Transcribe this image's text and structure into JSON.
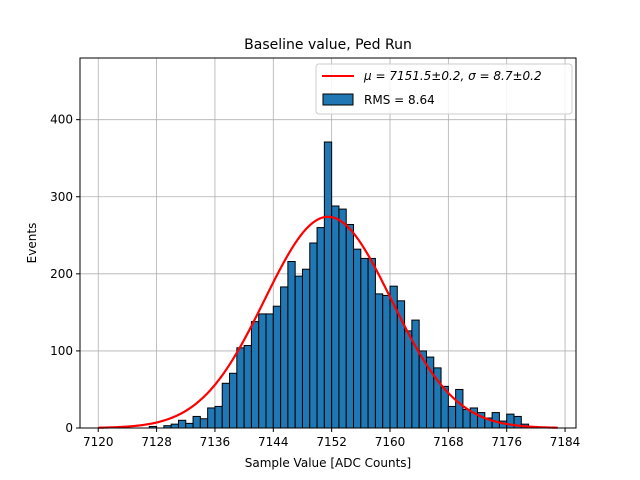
{
  "chart_data": {
    "type": "bar",
    "title": "Baseline value, Ped Run",
    "xlabel": "Sample Value [ADC Counts]",
    "ylabel": "Events",
    "xlim": [
      7117.5,
      7185.5
    ],
    "ylim": [
      0,
      480
    ],
    "xticks": [
      7120,
      7128,
      7136,
      7144,
      7152,
      7160,
      7168,
      7176,
      7184
    ],
    "yticks": [
      0,
      100,
      200,
      300,
      400
    ],
    "grid": true,
    "legend_position": "top-right",
    "bar_color": "#1f77b4",
    "fit_color": "#ff0000",
    "histogram": {
      "name": "RMS = 8.64",
      "bins": [
        {
          "x": 7127,
          "y": 2
        },
        {
          "x": 7128,
          "y": 0
        },
        {
          "x": 7129,
          "y": 3
        },
        {
          "x": 7130,
          "y": 5
        },
        {
          "x": 7131,
          "y": 10
        },
        {
          "x": 7132,
          "y": 6
        },
        {
          "x": 7133,
          "y": 15
        },
        {
          "x": 7134,
          "y": 12
        },
        {
          "x": 7135,
          "y": 26
        },
        {
          "x": 7136,
          "y": 28
        },
        {
          "x": 7137,
          "y": 58
        },
        {
          "x": 7138,
          "y": 71
        },
        {
          "x": 7139,
          "y": 104
        },
        {
          "x": 7140,
          "y": 107
        },
        {
          "x": 7141,
          "y": 138
        },
        {
          "x": 7142,
          "y": 148
        },
        {
          "x": 7143,
          "y": 148
        },
        {
          "x": 7144,
          "y": 158
        },
        {
          "x": 7145,
          "y": 183
        },
        {
          "x": 7146,
          "y": 216
        },
        {
          "x": 7147,
          "y": 197
        },
        {
          "x": 7148,
          "y": 206
        },
        {
          "x": 7149,
          "y": 240
        },
        {
          "x": 7150,
          "y": 260
        },
        {
          "x": 7151,
          "y": 371
        },
        {
          "x": 7152,
          "y": 288
        },
        {
          "x": 7153,
          "y": 284
        },
        {
          "x": 7154,
          "y": 264
        },
        {
          "x": 7155,
          "y": 232
        },
        {
          "x": 7156,
          "y": 220
        },
        {
          "x": 7157,
          "y": 220
        },
        {
          "x": 7158,
          "y": 174
        },
        {
          "x": 7159,
          "y": 172
        },
        {
          "x": 7160,
          "y": 184
        },
        {
          "x": 7161,
          "y": 165
        },
        {
          "x": 7162,
          "y": 126
        },
        {
          "x": 7163,
          "y": 140
        },
        {
          "x": 7164,
          "y": 100
        },
        {
          "x": 7165,
          "y": 92
        },
        {
          "x": 7166,
          "y": 78
        },
        {
          "x": 7167,
          "y": 54
        },
        {
          "x": 7168,
          "y": 28
        },
        {
          "x": 7169,
          "y": 50
        },
        {
          "x": 7170,
          "y": 24
        },
        {
          "x": 7171,
          "y": 26
        },
        {
          "x": 7172,
          "y": 20
        },
        {
          "x": 7173,
          "y": 13
        },
        {
          "x": 7174,
          "y": 20
        },
        {
          "x": 7175,
          "y": 9
        },
        {
          "x": 7176,
          "y": 18
        },
        {
          "x": 7177,
          "y": 15
        },
        {
          "x": 7178,
          "y": 5
        }
      ]
    },
    "fit": {
      "type": "gaussian",
      "legend_prefix": "μ = 7151.5±0.2, ",
      "legend_sigma": "σ = 8.7±0.2",
      "mu": 7151.5,
      "sigma": 8.7,
      "amplitude": 274,
      "x_range": [
        7120,
        7183
      ]
    }
  }
}
